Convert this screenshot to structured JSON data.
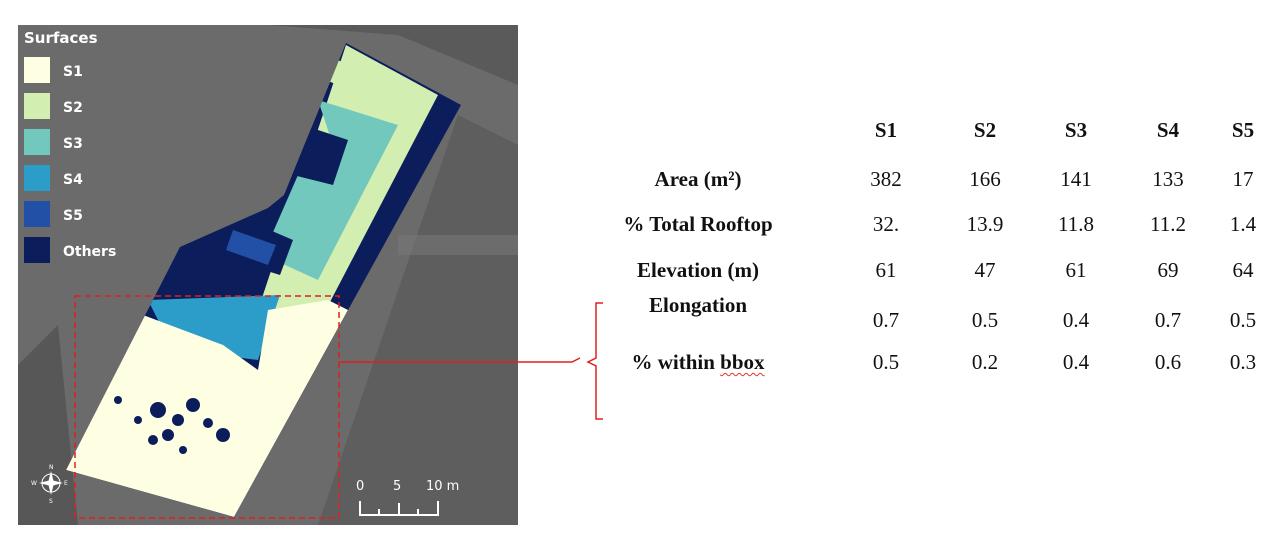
{
  "legend": {
    "title": "Surfaces",
    "items": [
      {
        "label": "S1",
        "color": "#fefee2"
      },
      {
        "label": "S2",
        "color": "#d3eeb1"
      },
      {
        "label": "S3",
        "color": "#72c8bd"
      },
      {
        "label": "S4",
        "color": "#2c9cc8"
      },
      {
        "label": "S5",
        "color": "#2250a6"
      },
      {
        "label": "Others",
        "color": "#0b1d5b"
      }
    ]
  },
  "scale_bar": {
    "labels": [
      "0",
      "5",
      "10 m"
    ]
  },
  "compass": {
    "n": "N",
    "s": "S",
    "e": "E",
    "w": "W"
  },
  "table": {
    "columns": [
      "S1",
      "S2",
      "S3",
      "S4",
      "S5"
    ],
    "rows": [
      {
        "label": "Area (m²)",
        "values": [
          "382",
          "166",
          "141",
          "133",
          "17"
        ]
      },
      {
        "label": "% Total Rooftop",
        "values": [
          "32.",
          "13.9",
          "11.8",
          "11.2",
          "1.4"
        ]
      },
      {
        "label": "Elevation (m)",
        "values": [
          "61",
          "47",
          "61",
          "69",
          "64"
        ]
      },
      {
        "label": "Elongation",
        "values": [
          "0.7",
          "0.5",
          "0.4",
          "0.7",
          "0.5"
        ]
      },
      {
        "label_prefix": "% within ",
        "label_underlined": "bbox",
        "values": [
          "0.5",
          "0.2",
          "0.4",
          "0.6",
          "0.3"
        ]
      }
    ]
  },
  "colors": {
    "callout": "#e02020",
    "bbox": "#e02020",
    "others": "#0b1d5b"
  }
}
